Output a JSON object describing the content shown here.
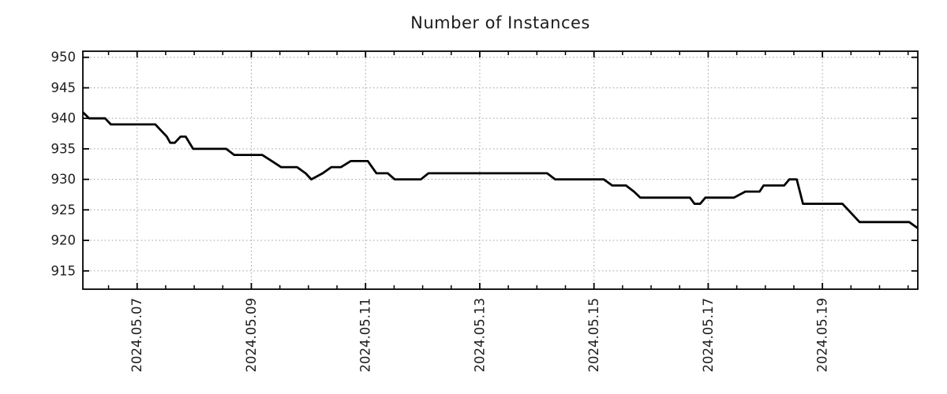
{
  "chart_data": {
    "type": "line",
    "title": "Number of Instances",
    "xlabel": "",
    "ylabel": "",
    "x_unit": "date (fractional day of 2024-05)",
    "x": [
      6.05,
      6.16,
      6.44,
      6.54,
      7.32,
      7.42,
      7.52,
      7.58,
      7.66,
      7.76,
      7.85,
      7.98,
      8.56,
      8.7,
      9.19,
      9.36,
      9.52,
      9.8,
      9.95,
      10.05,
      10.25,
      10.4,
      10.57,
      10.74,
      11.04,
      11.19,
      11.39,
      11.51,
      11.97,
      12.1,
      14.18,
      14.32,
      15.17,
      15.32,
      15.56,
      15.7,
      15.81,
      16.68,
      16.76,
      16.86,
      16.95,
      17.45,
      17.65,
      17.9,
      17.97,
      18.33,
      18.42,
      18.55,
      18.66,
      19.35,
      19.65,
      20.52,
      20.67
    ],
    "y": [
      941,
      940,
      940,
      939,
      939,
      938,
      937,
      936,
      936,
      937,
      937,
      935,
      935,
      934,
      934,
      933,
      932,
      932,
      931,
      930,
      931,
      932,
      932,
      933,
      933,
      931,
      931,
      930,
      930,
      931,
      931,
      930,
      930,
      929,
      929,
      928,
      927,
      927,
      926,
      926,
      927,
      927,
      928,
      928,
      929,
      929,
      930,
      930,
      926,
      926,
      923,
      923,
      922
    ],
    "xlim": [
      6.05,
      20.67
    ],
    "ylim": [
      912,
      951
    ],
    "xticks": {
      "values": [
        7,
        9,
        11,
        13,
        15,
        17,
        19
      ],
      "labels": [
        "2024.05.07",
        "2024.05.09",
        "2024.05.11",
        "2024.05.13",
        "2024.05.15",
        "2024.05.17",
        "2024.05.19"
      ]
    },
    "x_minor_step": 0.5,
    "yticks": [
      915,
      920,
      925,
      930,
      935,
      940,
      945,
      950
    ],
    "grid": true,
    "legend": "none",
    "tick_label_rotation_x": 90,
    "colors": {
      "line": "#000000",
      "grid": "#a3a3a3",
      "frame": "#000000",
      "text": "#1c1c1c",
      "background": "#ffffff"
    },
    "line_width": 2.8
  }
}
